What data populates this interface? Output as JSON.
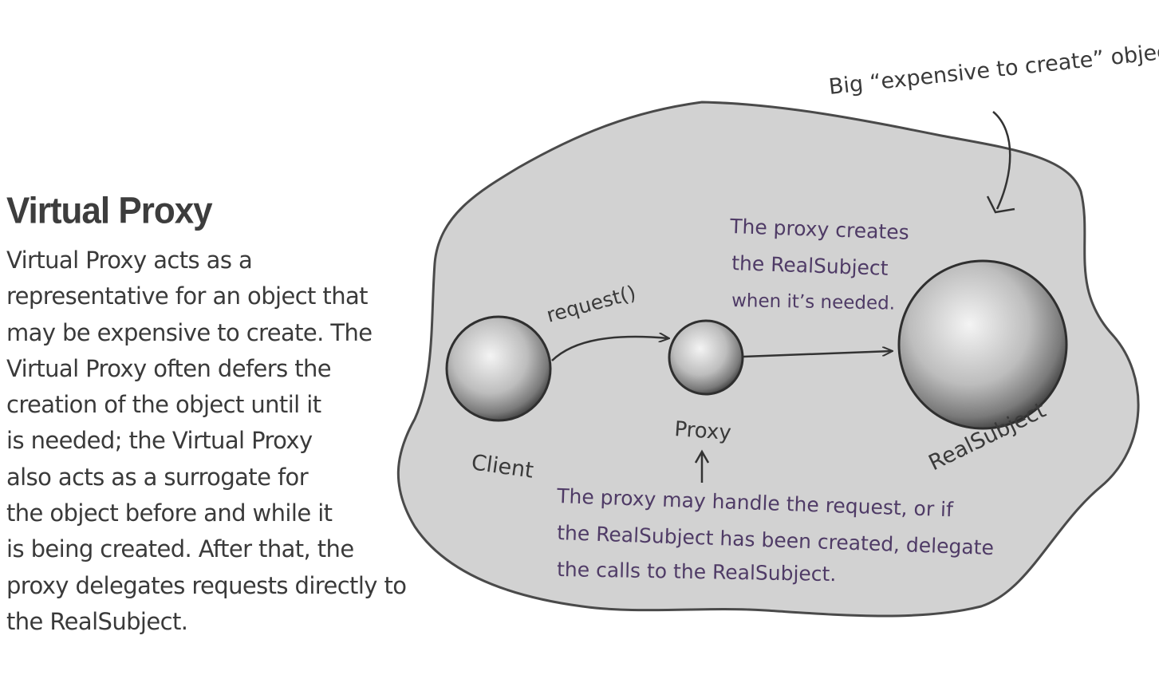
{
  "heading": "Virtual Proxy",
  "description_lines": [
    "Virtual Proxy acts as a",
    "representative for an object that",
    "may be expensive to create. The",
    "Virtual Proxy often defers the",
    "creation of the object until it",
    "is needed; the Virtual Proxy",
    "also acts as a surrogate for",
    "the object before and while it",
    "is being created.  After that, the",
    "proxy delegates requests directly to",
    "the RealSubject."
  ],
  "diagram": {
    "top_note": "Big “expensive to create” object",
    "creates_note_lines": [
      "The proxy creates",
      "the RealSubject",
      "when it’s needed."
    ],
    "request_label": "request()",
    "client_label": "Client",
    "proxy_label": "Proxy",
    "realsubject_label": "RealSubject",
    "bottom_note_lines": [
      "The proxy may handle the request, or if",
      "the RealSubject has been created, delegate",
      "the calls to the  RealSubject."
    ]
  }
}
